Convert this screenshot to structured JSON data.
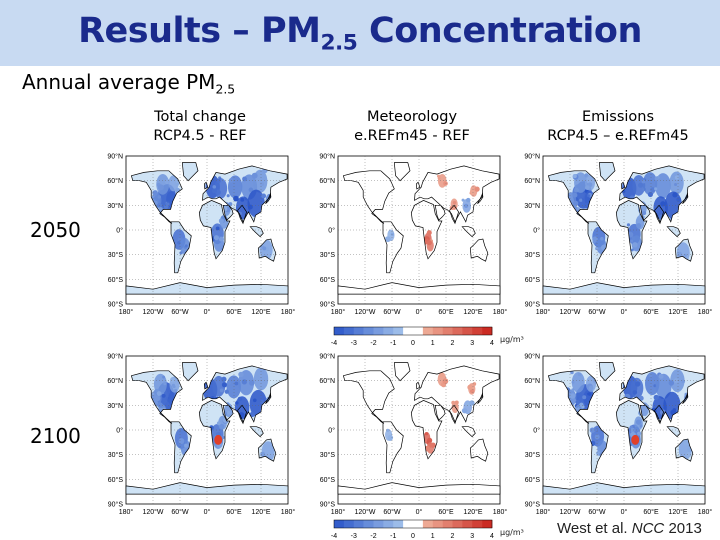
{
  "title": {
    "prefix": "Results – PM",
    "sub": "2.5",
    "suffix": " Concentration"
  },
  "subtitle": {
    "prefix": "Annual average PM",
    "sub": "2.5"
  },
  "columns": [
    {
      "line1": "Total change",
      "line2": "RCP4.5 - REF"
    },
    {
      "line1": "Meteorology",
      "line2": "e.REFm45 - REF"
    },
    {
      "line1": "Emissions",
      "line2": "RCP4.5 – e.REFm45"
    }
  ],
  "rows": [
    {
      "label": "2050"
    },
    {
      "label": "2100"
    }
  ],
  "map_axes": {
    "lat_labels": [
      "90°N",
      "60°N",
      "30°N",
      "0°",
      "30°S",
      "60°S",
      "90°S"
    ],
    "lon_labels": [
      "180°",
      "120°W",
      "60°W",
      "0°",
      "60°E",
      "120°E",
      "180°"
    ]
  },
  "colorbars": [
    {
      "ticks": [
        "-4",
        "-3",
        "-2",
        "-1",
        "0",
        "1",
        "2",
        "3",
        "4"
      ],
      "unit": "μg/m³"
    },
    {
      "ticks": [
        "-4",
        "-3",
        "-2",
        "-1",
        "0",
        "1",
        "2",
        "3",
        "4"
      ],
      "unit": "μg/m³"
    }
  ],
  "colors": {
    "title_text": "#1a2a8c",
    "title_bar": "#c8daf2",
    "decrease_strong": "#2a55c8",
    "decrease_light": "#b6d4f0",
    "increase_light": "#f6c8b0",
    "increase_strong": "#c8201a"
  },
  "citation": {
    "authors": "West et al.",
    "journal": "NCC",
    "year": "2013"
  }
}
